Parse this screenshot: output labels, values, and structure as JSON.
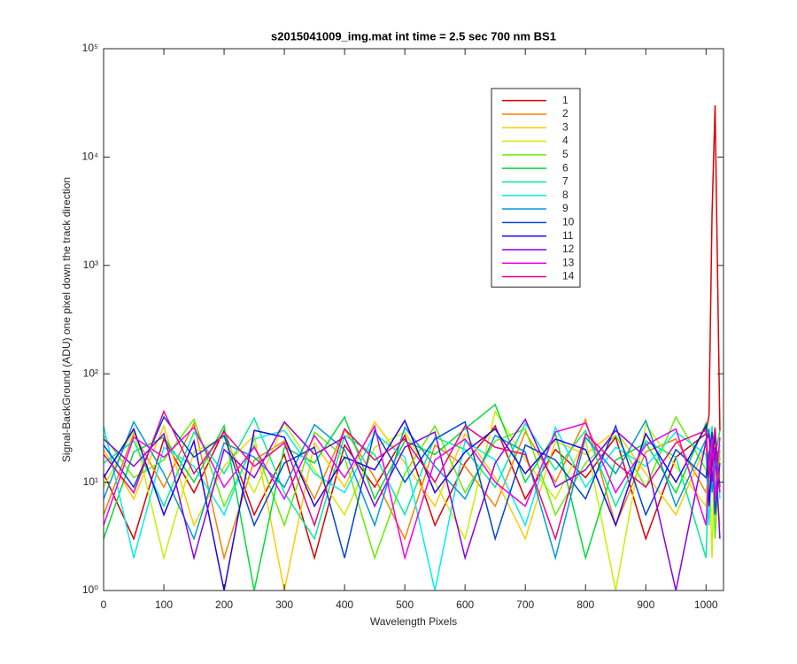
{
  "chart_data": {
    "type": "line",
    "title": "s2015041009_img.mat int time = 2.5 sec  700 nm BS1",
    "x_label": "Wavelength Pixels",
    "y_label": "Signal-BackGround (ADU) one pixel down the track direction",
    "y_scale": "log",
    "legend_location": "north",
    "xlim": [
      0,
      1029
    ],
    "ylim": [
      1,
      100000
    ],
    "xticks": [
      0,
      100,
      200,
      300,
      400,
      500,
      600,
      700,
      800,
      900,
      1000
    ],
    "yticks": [
      {
        "value": 1,
        "label": "10⁰"
      },
      {
        "value": 10,
        "label": "10¹"
      },
      {
        "value": 100,
        "label": "10²"
      },
      {
        "value": 1000,
        "label": "10³"
      },
      {
        "value": 10000,
        "label": "10⁴"
      },
      {
        "value": 100000,
        "label": "10⁵"
      }
    ],
    "x": [
      0,
      50,
      100,
      150,
      200,
      250,
      300,
      350,
      400,
      450,
      500,
      550,
      600,
      650,
      700,
      750,
      800,
      850,
      900,
      950,
      1000,
      1005,
      1010,
      1015,
      1023
    ],
    "series": [
      {
        "name": "1",
        "color": "#dd0000",
        "values": [
          12,
          3,
          25,
          8,
          30,
          5,
          18,
          2,
          22,
          9,
          27,
          4,
          15,
          33,
          7,
          20,
          11,
          26,
          3,
          17,
          28,
          42,
          3000,
          30000,
          30
        ]
      },
      {
        "name": "2",
        "color": "#ff7f00",
        "values": [
          5,
          28,
          9,
          35,
          2,
          16,
          24,
          7,
          31,
          11,
          3,
          22,
          14,
          6,
          29,
          10,
          38,
          4,
          19,
          25,
          8,
          13,
          21,
          6,
          17
        ]
      },
      {
        "name": "3",
        "color": "#ffcc00",
        "values": [
          20,
          7,
          33,
          4,
          14,
          27,
          1,
          23,
          9,
          36,
          15,
          6,
          28,
          11,
          3,
          24,
          18,
          30,
          12,
          5,
          22,
          9,
          27,
          14,
          4
        ]
      },
      {
        "name": "4",
        "color": "#ccee00",
        "values": [
          9,
          30,
          2,
          19,
          26,
          8,
          35,
          13,
          5,
          21,
          29,
          10,
          3,
          45,
          16,
          7,
          25,
          1,
          34,
          14,
          6,
          19,
          2,
          28,
          11
        ]
      },
      {
        "name": "5",
        "color": "#66ee00",
        "values": [
          27,
          11,
          16,
          38,
          6,
          22,
          4,
          29,
          17,
          2,
          12,
          33,
          8,
          24,
          31,
          5,
          15,
          27,
          9,
          40,
          13,
          7,
          24,
          3,
          20
        ]
      },
      {
        "name": "6",
        "color": "#00dd33",
        "values": [
          3,
          19,
          26,
          10,
          33,
          1,
          21,
          15,
          40,
          7,
          24,
          18,
          31,
          52,
          10,
          28,
          2,
          16,
          23,
          8,
          35,
          26,
          11,
          17,
          30
        ]
      },
      {
        "name": "7",
        "color": "#00ee99",
        "values": [
          15,
          24,
          6,
          29,
          12,
          39,
          8,
          3,
          27,
          18,
          5,
          26,
          20,
          9,
          35,
          13,
          30,
          6,
          24,
          17,
          2,
          15,
          33,
          9,
          12
        ]
      },
      {
        "name": "8",
        "color": "#00eeee",
        "values": [
          33,
          2,
          21,
          14,
          5,
          25,
          30,
          12,
          8,
          28,
          17,
          1,
          24,
          16,
          4,
          32,
          9,
          21,
          14,
          29,
          18,
          4,
          22,
          30,
          7
        ]
      },
      {
        "name": "9",
        "color": "#0099dd",
        "values": [
          7,
          36,
          12,
          3,
          23,
          17,
          9,
          34,
          20,
          4,
          32,
          14,
          7,
          27,
          19,
          2,
          26,
          12,
          37,
          6,
          25,
          31,
          8,
          14,
          22
        ]
      },
      {
        "name": "10",
        "color": "#0044dd",
        "values": [
          22,
          9,
          40,
          17,
          27,
          4,
          15,
          21,
          2,
          30,
          10,
          25,
          36,
          3,
          22,
          16,
          7,
          33,
          5,
          20,
          11,
          18,
          29,
          5,
          15
        ]
      },
      {
        "name": "11",
        "color": "#2200ee",
        "values": [
          11,
          31,
          5,
          24,
          1,
          30,
          26,
          6,
          17,
          13,
          37,
          8,
          19,
          31,
          12,
          25,
          20,
          4,
          28,
          10,
          33,
          6,
          16,
          27,
          9
        ]
      },
      {
        "name": "12",
        "color": "#8800ee",
        "values": [
          25,
          14,
          28,
          2,
          20,
          11,
          36,
          18,
          26,
          6,
          21,
          29,
          2,
          15,
          38,
          9,
          13,
          30,
          17,
          1,
          24,
          28,
          10,
          21,
          3
        ]
      },
      {
        "name": "13",
        "color": "#ee00ee",
        "values": [
          4,
          26,
          17,
          32,
          9,
          21,
          7,
          27,
          11,
          33,
          2,
          16,
          25,
          10,
          6,
          29,
          35,
          8,
          22,
          31,
          4,
          14,
          25,
          7,
          26
        ]
      },
      {
        "name": "14",
        "color": "#ee0088",
        "values": [
          18,
          8,
          45,
          12,
          29,
          14,
          23,
          4,
          31,
          16,
          25,
          10,
          33,
          21,
          18,
          3,
          28,
          15,
          9,
          23,
          30,
          11,
          19,
          32,
          8
        ]
      }
    ]
  }
}
